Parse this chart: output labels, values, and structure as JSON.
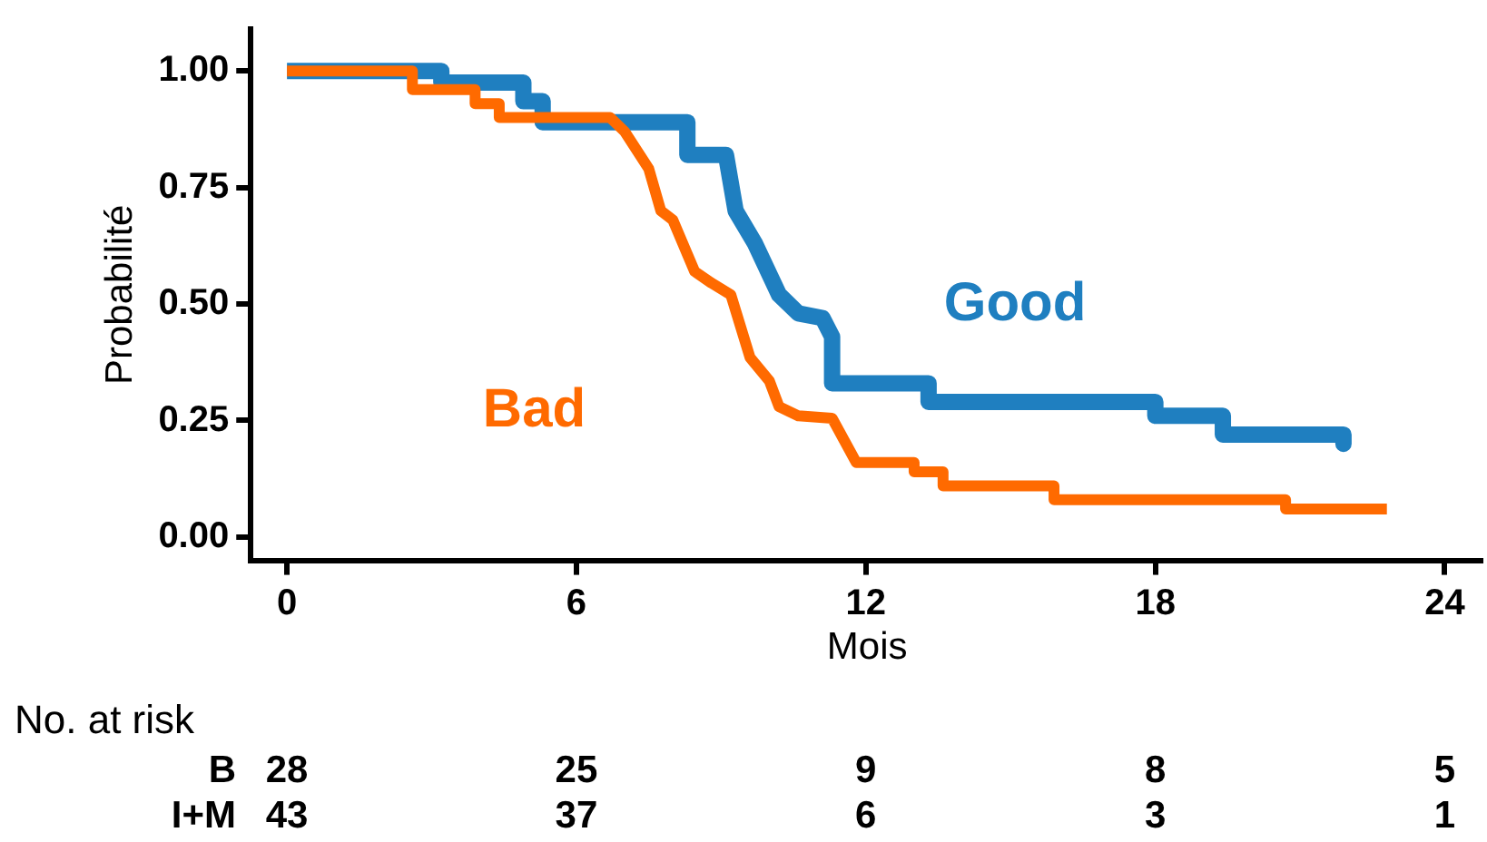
{
  "chart_data": {
    "type": "line",
    "xlabel": "Mois",
    "ylabel": "Probabilité",
    "xlim": [
      -0.75,
      24.8
    ],
    "ylim": [
      -0.05,
      1.09
    ],
    "xticks": [
      0,
      6,
      12,
      18,
      24
    ],
    "yticks": [
      {
        "value": 0,
        "label": "0.00"
      },
      {
        "value": 0.25,
        "label": "0.25"
      },
      {
        "value": 0.5,
        "label": "0.50"
      },
      {
        "value": 0.75,
        "label": "0.75"
      },
      {
        "value": 1,
        "label": "1.00"
      }
    ],
    "grid": false,
    "legend": false,
    "marker": "none",
    "line_style": "solid",
    "series": [
      {
        "name": "Good",
        "color": "#1f7fc0",
        "x": [
          0,
          3.2,
          3.2,
          4.9,
          4.9,
          5.3,
          5.3,
          8.3,
          8.3,
          9.1,
          9.3,
          9.7,
          10.2,
          10.6,
          11.1,
          11.3,
          11.3,
          13.3,
          13.3,
          18.0,
          18.0,
          19.4,
          19.4,
          21.9,
          21.9
        ],
        "values": [
          1,
          1,
          0.975,
          0.975,
          0.935,
          0.935,
          0.89,
          0.89,
          0.82,
          0.82,
          0.7,
          0.63,
          0.52,
          0.48,
          0.47,
          0.43,
          0.33,
          0.33,
          0.29,
          0.29,
          0.26,
          0.26,
          0.22,
          0.22,
          0.2
        ]
      },
      {
        "name": "Bad",
        "color": "#ff6a00",
        "x": [
          0,
          2.6,
          2.6,
          3.9,
          3.9,
          4.4,
          4.4,
          6.7,
          7.0,
          7.5,
          7.75,
          8.0,
          8.45,
          8.8,
          9.2,
          9.6,
          10.0,
          10.2,
          10.6,
          11.3,
          11.8,
          13.0,
          13.0,
          13.6,
          13.6,
          15.9,
          15.9,
          20.7,
          20.7,
          22.8
        ],
        "values": [
          1,
          1,
          0.96,
          0.96,
          0.93,
          0.93,
          0.9,
          0.9,
          0.87,
          0.79,
          0.7,
          0.68,
          0.57,
          0.545,
          0.52,
          0.385,
          0.335,
          0.28,
          0.26,
          0.255,
          0.16,
          0.16,
          0.14,
          0.14,
          0.11,
          0.11,
          0.08,
          0.08,
          0.06,
          0.06
        ]
      }
    ],
    "annotations": [
      "No. at risk",
      "B",
      "28",
      "25",
      "9",
      "8",
      "5",
      "I+M",
      "43",
      "37",
      "6",
      "3",
      "1"
    ]
  }
}
